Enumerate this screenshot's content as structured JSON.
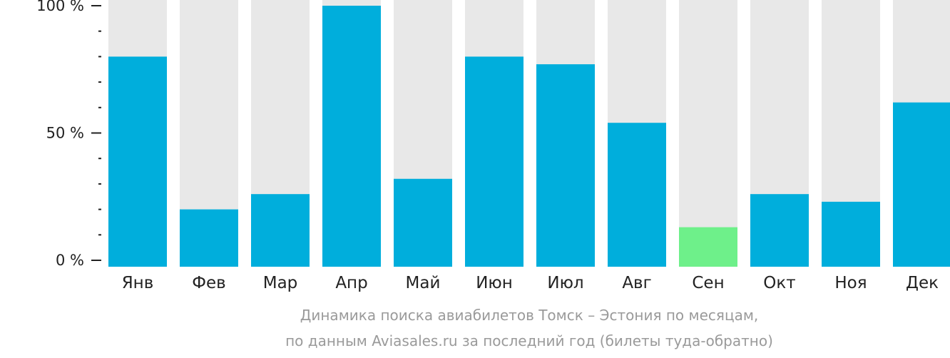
{
  "chart_data": {
    "type": "bar",
    "categories": [
      "Янв",
      "Фев",
      "Мар",
      "Апр",
      "Май",
      "Июн",
      "Июл",
      "Авг",
      "Сен",
      "Окт",
      "Ноя",
      "Дек"
    ],
    "values": [
      80,
      20,
      26,
      100,
      32,
      80,
      77,
      54,
      13,
      26,
      23,
      62
    ],
    "ylim": [
      0,
      100
    ],
    "y_ticks": [
      {
        "value": 0,
        "label": "0 %"
      },
      {
        "value": 50,
        "label": "50 %"
      },
      {
        "value": 100,
        "label": "100 %"
      }
    ],
    "highlight_index": 8,
    "grid": false,
    "colors": {
      "bar": "#00AEDC",
      "bar_highlight": "#6EF08A",
      "track": "#E8E8E8",
      "axis": "#222222",
      "caption": "#9A9A9A"
    }
  },
  "caption": {
    "line1": "Динамика поиска авиабилетов Томск – Эстония по месяцам,",
    "line2": "по данным Aviasales.ru за последний год (билеты туда-обратно)"
  }
}
